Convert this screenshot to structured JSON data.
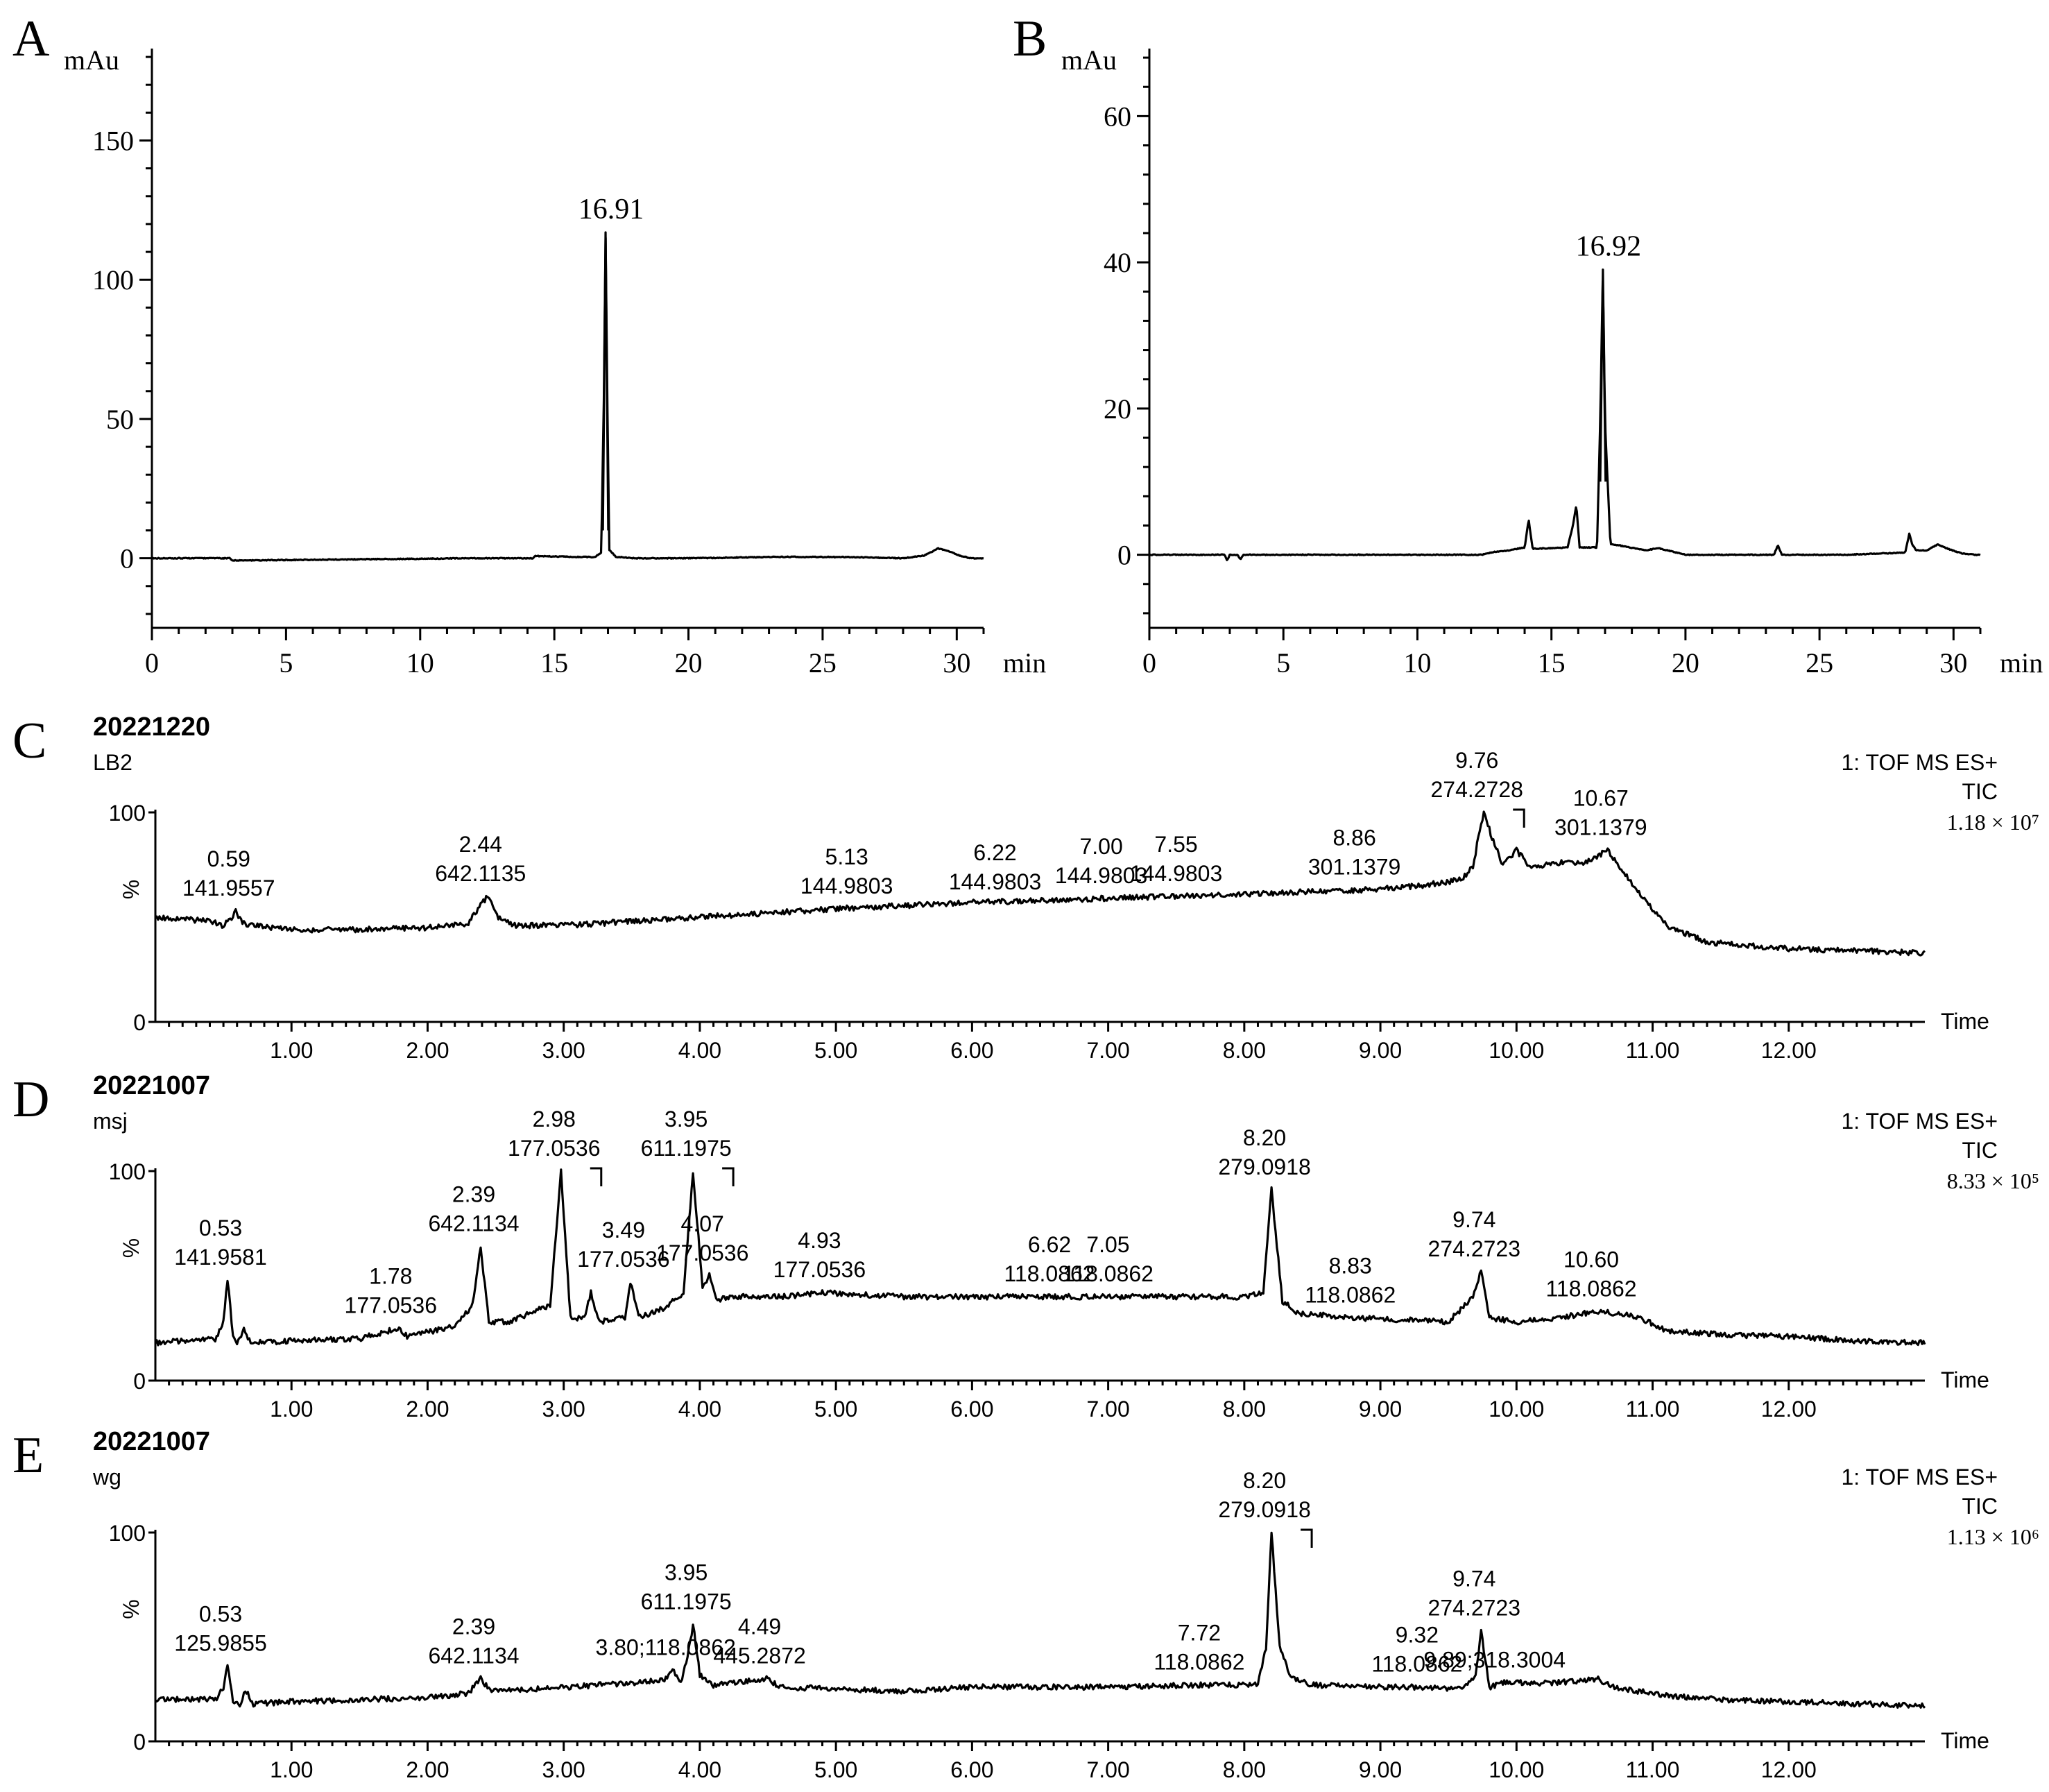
{
  "chart_data": [
    {
      "panel": "A",
      "type": "line",
      "ylabel": "mAu",
      "xlabel": "min",
      "xlim": [
        0,
        31
      ],
      "ylim": [
        -25,
        185
      ],
      "xticks": [
        0,
        5,
        10,
        15,
        20,
        25,
        30
      ],
      "yticks": [
        0,
        50,
        100,
        150
      ],
      "annotations": [
        {
          "x": 16.91,
          "y": 117,
          "text": "16.91"
        }
      ],
      "x": [
        0,
        2.9,
        3.0,
        12,
        14.2,
        14.3,
        15.8,
        16.5,
        16.75,
        16.85,
        16.91,
        16.97,
        17.05,
        17.3,
        18,
        20,
        23.5,
        26.1,
        28,
        28.8,
        29.3,
        29.7,
        30.1,
        30.5,
        31
      ],
      "y": [
        0,
        0,
        -0.8,
        0,
        0,
        0.8,
        0.5,
        0.4,
        2,
        60,
        117,
        60,
        3,
        0.5,
        0,
        0,
        0.5,
        0.4,
        0,
        1,
        3.5,
        2.5,
        1,
        0,
        0
      ]
    },
    {
      "panel": "B",
      "type": "line",
      "ylabel": "mAu",
      "xlabel": "min",
      "xlim": [
        0,
        31
      ],
      "ylim": [
        -10,
        70
      ],
      "xticks": [
        0,
        5,
        10,
        15,
        20,
        25,
        30
      ],
      "yticks": [
        0,
        20,
        40,
        60
      ],
      "annotations": [
        {
          "x": 16.92,
          "y": 39,
          "text": "16.92"
        }
      ],
      "x": [
        0,
        2.8,
        2.9,
        3.0,
        3.3,
        3.4,
        3.5,
        12.4,
        12.9,
        13.4,
        14.0,
        14.15,
        14.3,
        15.6,
        15.8,
        15.93,
        16.05,
        16.7,
        16.83,
        16.92,
        17.0,
        17.2,
        18.5,
        19.0,
        20,
        23.3,
        23.45,
        23.6,
        26,
        28.2,
        28.35,
        28.45,
        28.6,
        29,
        29.4,
        29.8,
        30.3,
        30.8,
        31
      ],
      "y": [
        0,
        0,
        -0.8,
        0,
        0,
        -0.7,
        0,
        0,
        0.4,
        0.6,
        1,
        4.8,
        0.8,
        1,
        4,
        6.8,
        1,
        1,
        20,
        39,
        18,
        1.5,
        0.6,
        0.9,
        0,
        0,
        1.3,
        0,
        0,
        0.3,
        2.9,
        1.5,
        0.6,
        0.6,
        1.4,
        0.8,
        0.2,
        0,
        0
      ]
    },
    {
      "panel": "C",
      "type": "line",
      "date": "20221220",
      "sample": "LB2",
      "ylabel": "%",
      "xlabel": "Time",
      "info": [
        "1: TOF MS ES+",
        "TIC",
        "1.18 × 10⁷"
      ],
      "xlim": [
        0,
        13.0
      ],
      "ylim": [
        0,
        100
      ],
      "xticks": [
        "1.00",
        "2.00",
        "3.00",
        "4.00",
        "5.00",
        "6.00",
        "7.00",
        "8.00",
        "9.00",
        "10.00",
        "11.00",
        "12.00"
      ],
      "yticks": [
        "0",
        "100"
      ],
      "x": [
        0,
        0.4,
        0.5,
        0.55,
        0.59,
        0.64,
        0.75,
        1.0,
        1.5,
        2.0,
        2.3,
        2.38,
        2.44,
        2.52,
        2.62,
        3.0,
        4.0,
        5.0,
        6.0,
        7.0,
        8.0,
        8.86,
        9.3,
        9.6,
        9.68,
        9.72,
        9.76,
        9.82,
        9.9,
        10.0,
        10.1,
        10.3,
        10.5,
        10.67,
        10.78,
        10.9,
        11.1,
        11.4,
        12.0,
        12.5,
        12.95
      ],
      "y": [
        50,
        48,
        46,
        49,
        53,
        47,
        46,
        44,
        44,
        45,
        47,
        55,
        60,
        50,
        46,
        46,
        50,
        54,
        57,
        59,
        61,
        63,
        65,
        68,
        74,
        88,
        100,
        88,
        75,
        82,
        74,
        76,
        76,
        82,
        72,
        62,
        46,
        38,
        35,
        34,
        33
      ],
      "labels": [
        {
          "x": 0.59,
          "y": 53,
          "rt": "0.59",
          "mz": "141.9557"
        },
        {
          "x": 2.44,
          "y": 60,
          "rt": "2.44",
          "mz": "642.1135",
          "color": "#ff1a1a"
        },
        {
          "x": 5.13,
          "y": 54,
          "rt": "5.13",
          "mz": "144.9803"
        },
        {
          "x": 6.22,
          "y": 56,
          "rt": "6.22",
          "mz": "144.9803"
        },
        {
          "x": 7.0,
          "y": 59,
          "rt": "7.00",
          "mz": "144.9803"
        },
        {
          "x": 7.55,
          "y": 60,
          "rt": "7.55",
          "mz": "144.9803"
        },
        {
          "x": 8.86,
          "y": 63,
          "rt": "8.86",
          "mz": "301.1379"
        },
        {
          "x": 9.76,
          "y": 100,
          "rt": "9.76",
          "mz": "274.2728"
        },
        {
          "x": 10.67,
          "y": 82,
          "rt": "10.67",
          "mz": "301.1379"
        }
      ]
    },
    {
      "panel": "D",
      "type": "line",
      "date": "20221007",
      "sample": "msj",
      "ylabel": "%",
      "xlabel": "Time",
      "info": [
        "1: TOF MS ES+",
        "TIC",
        "8.33 × 10⁵"
      ],
      "xlim": [
        0,
        13.0
      ],
      "ylim": [
        0,
        100
      ],
      "xticks": [
        "1.00",
        "2.00",
        "3.00",
        "4.00",
        "5.00",
        "6.00",
        "7.00",
        "8.00",
        "9.00",
        "10.00",
        "11.00",
        "12.00"
      ],
      "yticks": [
        "0",
        "100"
      ],
      "x": [
        0,
        0.45,
        0.5,
        0.53,
        0.57,
        0.6,
        0.65,
        0.7,
        1.0,
        1.5,
        1.78,
        1.85,
        2.2,
        2.33,
        2.39,
        2.45,
        2.6,
        2.9,
        2.98,
        3.05,
        3.15,
        3.2,
        3.26,
        3.45,
        3.49,
        3.55,
        3.75,
        3.88,
        3.95,
        4.02,
        4.07,
        4.12,
        4.2,
        4.6,
        4.93,
        5.5,
        6.0,
        6.62,
        7.05,
        8.0,
        8.14,
        8.2,
        8.28,
        8.4,
        8.83,
        9.5,
        9.68,
        9.74,
        9.8,
        10.0,
        10.3,
        10.6,
        10.75,
        10.9,
        11.1,
        11.5,
        12.0,
        12.5,
        12.95
      ],
      "y": [
        18,
        20,
        28,
        48,
        22,
        18,
        24,
        18,
        19,
        20,
        25,
        21,
        26,
        36,
        64,
        28,
        28,
        36,
        100,
        30,
        30,
        42,
        28,
        30,
        47,
        30,
        35,
        42,
        100,
        44,
        50,
        38,
        40,
        40,
        42,
        40,
        40,
        40,
        40,
        40,
        42,
        91,
        38,
        32,
        30,
        28,
        40,
        52,
        30,
        28,
        30,
        33,
        32,
        30,
        24,
        22,
        21,
        19,
        18
      ],
      "labels": [
        {
          "x": 0.53,
          "y": 48,
          "rt": "0.53",
          "mz": "141.9581"
        },
        {
          "x": 1.78,
          "y": 25,
          "rt": "1.78",
          "mz": "177.0536"
        },
        {
          "x": 2.39,
          "y": 64,
          "rt": "2.39",
          "mz": "642.1134",
          "color": "#ff1a1a"
        },
        {
          "x": 2.98,
          "y": 100,
          "rt": "2.98",
          "mz": "177.0536"
        },
        {
          "x": 3.49,
          "y": 47,
          "rt": "3.49",
          "mz": "177.0536"
        },
        {
          "x": 3.95,
          "y": 100,
          "rt": "3.95",
          "mz": "611.1975"
        },
        {
          "x": 4.07,
          "y": 50,
          "rt": "4.07",
          "mz": "177.0536"
        },
        {
          "x": 4.93,
          "y": 42,
          "rt": "4.93",
          "mz": "177.0536"
        },
        {
          "x": 6.62,
          "y": 40,
          "rt": "6.62",
          "mz": "118.0862"
        },
        {
          "x": 7.05,
          "y": 40,
          "rt": "7.05",
          "mz": "118.0862"
        },
        {
          "x": 8.2,
          "y": 91,
          "rt": "8.20",
          "mz": "279.0918"
        },
        {
          "x": 8.83,
          "y": 30,
          "rt": "8.83",
          "mz": "118.0862"
        },
        {
          "x": 9.74,
          "y": 52,
          "rt": "9.74",
          "mz": "274.2723"
        },
        {
          "x": 10.6,
          "y": 33,
          "rt": "10.60",
          "mz": "118.0862"
        }
      ]
    },
    {
      "panel": "E",
      "type": "line",
      "date": "20221007",
      "sample": "wg",
      "ylabel": "%",
      "xlabel": "Time",
      "info": [
        "1: TOF MS ES+",
        "TIC",
        "1.13 × 10⁶"
      ],
      "xlim": [
        0,
        13.0
      ],
      "ylim": [
        0,
        100
      ],
      "xticks": [
        "1.00",
        "2.00",
        "3.00",
        "4.00",
        "5.00",
        "6.00",
        "7.00",
        "8.00",
        "9.00",
        "10.00",
        "11.00",
        "12.00"
      ],
      "yticks": [
        "0",
        "100"
      ],
      "x": [
        0,
        0.45,
        0.5,
        0.53,
        0.57,
        0.62,
        0.66,
        0.72,
        1.0,
        1.5,
        2.0,
        2.3,
        2.39,
        2.46,
        2.8,
        3.5,
        3.75,
        3.8,
        3.86,
        3.91,
        3.95,
        4.0,
        4.1,
        4.49,
        4.6,
        5.0,
        5.5,
        6.0,
        7.0,
        7.72,
        8.1,
        8.16,
        8.2,
        8.26,
        8.35,
        8.5,
        9.0,
        9.32,
        9.6,
        9.7,
        9.74,
        9.8,
        9.89,
        10.0,
        10.3,
        10.6,
        10.7,
        10.9,
        11.1,
        11.5,
        12.0,
        12.5,
        12.95
      ],
      "y": [
        20,
        20,
        26,
        36,
        20,
        16,
        25,
        18,
        19,
        20,
        21,
        23,
        30,
        24,
        25,
        28,
        30,
        34,
        28,
        40,
        56,
        32,
        27,
        30,
        26,
        25,
        24,
        26,
        26,
        27,
        27,
        45,
        100,
        45,
        30,
        27,
        26,
        26,
        25,
        32,
        53,
        26,
        28,
        28,
        28,
        30,
        26,
        24,
        22,
        20,
        19,
        18,
        17
      ],
      "labels": [
        {
          "x": 0.53,
          "y": 36,
          "rt": "0.53",
          "mz": "125.9855"
        },
        {
          "x": 2.39,
          "y": 30,
          "rt": "2.39",
          "mz": "642.1134",
          "color": "#ff1a1a"
        },
        {
          "x": 3.8,
          "y": 34,
          "rt": "3.80;118.0862",
          "mz": ""
        },
        {
          "x": 3.95,
          "y": 56,
          "rt": "3.95",
          "mz": "611.1975"
        },
        {
          "x": 4.49,
          "y": 30,
          "rt": "4.49",
          "mz": "445.2872"
        },
        {
          "x": 7.72,
          "y": 27,
          "rt": "7.72",
          "mz": "118.0862"
        },
        {
          "x": 8.2,
          "y": 100,
          "rt": "8.20",
          "mz": "279.0918"
        },
        {
          "x": 9.32,
          "y": 26,
          "rt": "9.32",
          "mz": "118.0862"
        },
        {
          "x": 9.74,
          "y": 53,
          "rt": "9.74",
          "mz": "274.2723"
        },
        {
          "x": 9.89,
          "y": 28,
          "rt": "9.89;318.3004",
          "mz": ""
        }
      ]
    }
  ]
}
